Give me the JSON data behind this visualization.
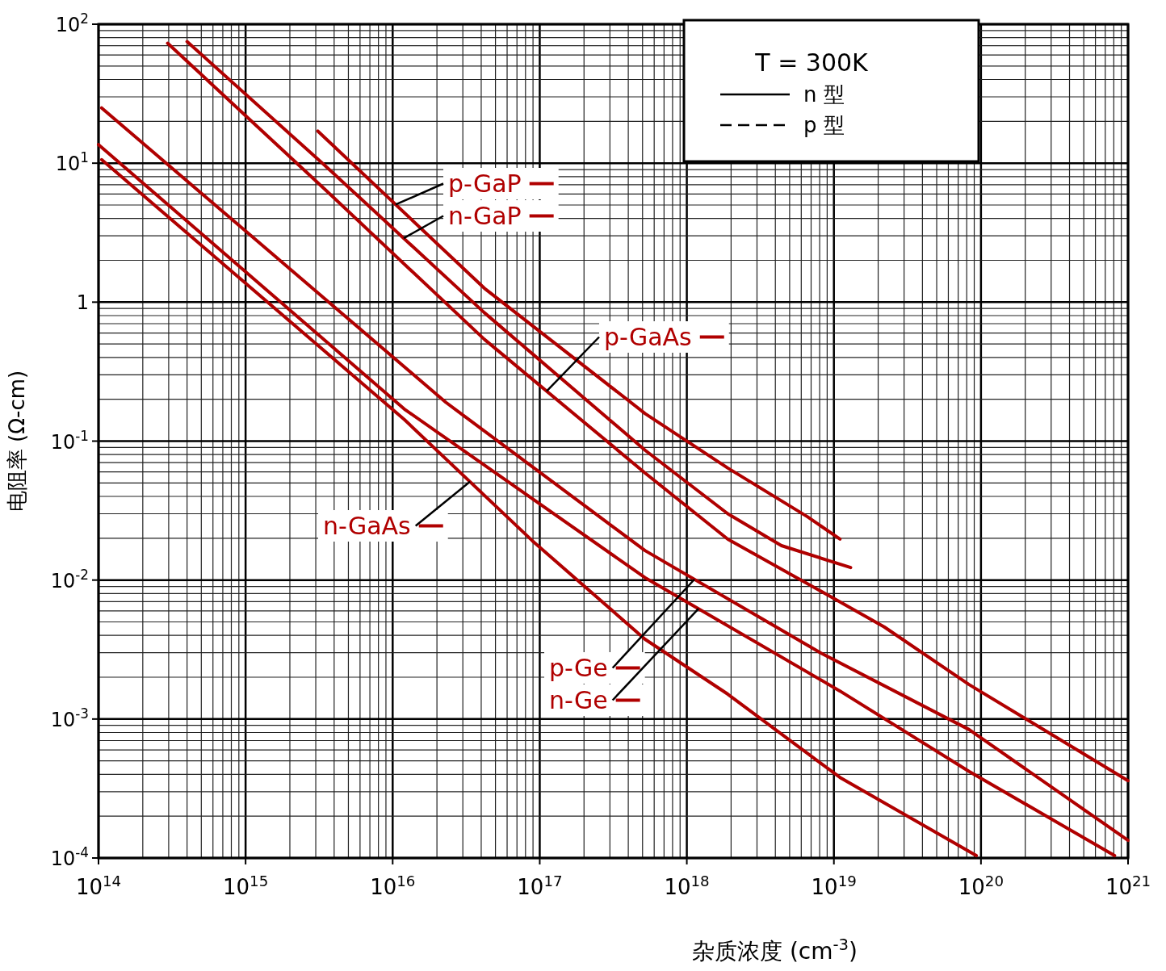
{
  "chart_data": {
    "type": "line",
    "xlabel": "杂质浓度 (cm$^{-3}$)",
    "ylabel": "电阻率 (Ω-cm)",
    "log": "xy",
    "grid": true,
    "legend": "center",
    "xlim": [
      100000000000000.0,
      1e+21
    ],
    "ylim": [
      0.0001,
      100
    ],
    "xticks": [
      {
        "value": 100000000000000.0,
        "label": "10$^{14}$"
      },
      {
        "value": 1000000000000000.0,
        "label": "10$^{15}$"
      },
      {
        "value": 1e+16,
        "label": "10$^{16}$"
      },
      {
        "value": 1e+17,
        "label": "10$^{17}$"
      },
      {
        "value": 1e+18,
        "label": "10$^{18}$"
      },
      {
        "value": 1e+19,
        "label": "10$^{19}$"
      },
      {
        "value": 1e+20,
        "label": "10$^{20}$"
      },
      {
        "value": 1e+21,
        "label": "10$^{21}$"
      }
    ],
    "yticks": [
      {
        "value": 0.0001,
        "label": "10$^{-4}$"
      },
      {
        "value": 0.001,
        "label": "10$^{-3}$"
      },
      {
        "value": 0.01,
        "label": "10$^{-2}$"
      },
      {
        "value": 0.1,
        "label": "10$^{-1}$"
      },
      1,
      {
        "value": 10,
        "label": "10$^{1}$"
      },
      {
        "value": 100,
        "label": "10$^{2}$"
      }
    ],
    "annotations": [
      "T = 300K",
      "n 型",
      "p 型"
    ],
    "series": [
      {
        "name": "p-GaP",
        "color": "#b00000",
        "x": [
          3100000000000000.0,
          4.2e+16,
          5.2e+17,
          1.9e+18,
          6.6e+18,
          1.1e+19
        ],
        "values": [
          17,
          1.26,
          0.158,
          0.064,
          0.0286,
          0.0197
        ]
      },
      {
        "name": "n-GaP",
        "color": "#b00000",
        "x": [
          400000000000000.0,
          3400000000000000.0,
          4.2e+16,
          5.2e+17,
          1.9e+18,
          4.4e+18,
          1.3e+19
        ],
        "values": [
          75,
          9.8,
          0.84,
          0.086,
          0.03,
          0.0177,
          0.0123
        ]
      },
      {
        "name": "p-GaAs",
        "color": "#b00000",
        "x": [
          295000000000000.0,
          3400000000000000.0,
          4.2e+16,
          5.2e+17,
          1.9e+18,
          8.9e+18,
          2.2e+19,
          8.3e+19,
          1e+21
        ],
        "values": [
          73,
          6.6,
          0.54,
          0.059,
          0.0197,
          0.0079,
          0.0046,
          0.00177,
          0.00036
        ]
      },
      {
        "name": "n-GaAs",
        "color": "#b00000",
        "x": [
          105000000000000.0,
          1.2e+16,
          8.9e+16,
          5.2e+17,
          1.9e+18,
          1.1e+19,
          9.3e+19
        ],
        "values": [
          10.6,
          0.143,
          0.0192,
          0.00375,
          0.00151,
          0.00038,
          0.000104
        ]
      },
      {
        "name": "p-Ge",
        "color": "#b00000",
        "x": [
          105000000000000.0,
          950000000000000.0,
          2.3e+16,
          5.2e+17,
          8.1e+18,
          8.3e+19,
          1e+21
        ],
        "values": [
          25,
          3.4,
          0.19,
          0.0163,
          0.003,
          0.00084,
          0.000134
        ]
      },
      {
        "name": "n-Ge",
        "color": "#b00000",
        "x": [
          100000000000000.0,
          1.2e+16,
          5.2e+17,
          1.1e+19,
          8.3e+19,
          8.1e+20
        ],
        "values": [
          13.6,
          0.17,
          0.0104,
          0.00159,
          0.00042,
          0.000104
        ]
      }
    ]
  }
}
